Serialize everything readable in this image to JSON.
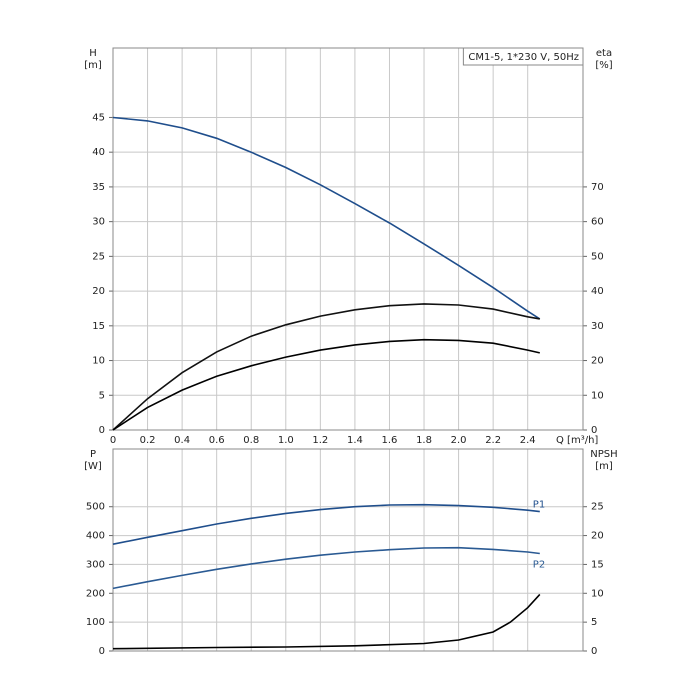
{
  "chart_data": [
    {
      "type": "line",
      "title": "CM1-5, 1*230 V, 50Hz",
      "xlabel": "Q [m³/h]",
      "ylabel": [
        "H",
        "[m]"
      ],
      "y2label": [
        "eta",
        "[%]"
      ],
      "xlim": [
        0,
        2.72
      ],
      "xticks": [
        0,
        0.2,
        0.4,
        0.6,
        0.8,
        {
          "value": 1,
          "label": "1.0"
        },
        1.2,
        1.4,
        1.6,
        1.8,
        {
          "value": 2,
          "label": "2.0"
        },
        2.2,
        2.4
      ],
      "ylim": [
        0,
        55
      ],
      "yticks": [
        0,
        5,
        10,
        15,
        20,
        25,
        30,
        35,
        40,
        45
      ],
      "y2lim": [
        0,
        110
      ],
      "y2ticks": [
        0,
        10,
        20,
        30,
        40,
        50,
        60,
        70
      ],
      "grid": true,
      "series": [
        {
          "color": "#1f4e8c",
          "x": [
            0,
            0.2,
            0.4,
            0.6,
            0.8,
            1.0,
            1.2,
            1.4,
            1.6,
            1.8,
            2.0,
            2.2,
            2.4,
            2.47
          ],
          "values": [
            45,
            44.5,
            43.5,
            42,
            40,
            37.8,
            35.3,
            32.6,
            29.8,
            26.8,
            23.7,
            20.5,
            17.1,
            16.0
          ]
        },
        {
          "color": "#111111",
          "axis": "y2",
          "x": [
            0,
            0.2,
            0.4,
            0.6,
            0.8,
            1.0,
            1.2,
            1.4,
            1.6,
            1.8,
            2.0,
            2.2,
            2.4,
            2.47
          ],
          "values": [
            0,
            9,
            16.5,
            22.5,
            27,
            30.3,
            32.8,
            34.6,
            35.8,
            36.3,
            36,
            34.8,
            32.6,
            32
          ]
        },
        {
          "color": "#000000",
          "axis": "y2",
          "x": [
            0,
            0.2,
            0.4,
            0.6,
            0.8,
            1.0,
            1.2,
            1.4,
            1.6,
            1.8,
            2.0,
            2.2,
            2.4,
            2.47
          ],
          "values": [
            0,
            6.5,
            11.5,
            15.5,
            18.5,
            21,
            23,
            24.5,
            25.5,
            26,
            25.8,
            25,
            23,
            22.2
          ]
        }
      ]
    },
    {
      "type": "line",
      "ylabel": [
        "P",
        "[W]"
      ],
      "y2label": [
        "NPSH",
        "[m]"
      ],
      "xlim": [
        0,
        2.72
      ],
      "ylim": [
        0,
        700
      ],
      "yticks": [
        0,
        100,
        200,
        300,
        400,
        500
      ],
      "y2lim": [
        0,
        35
      ],
      "y2ticks": [
        0,
        5,
        10,
        15,
        20,
        25
      ],
      "grid": true,
      "series": [
        {
          "name": "P1",
          "color": "#1f4e8c",
          "x": [
            0,
            0.2,
            0.4,
            0.6,
            0.8,
            1.0,
            1.2,
            1.4,
            1.6,
            1.8,
            2.0,
            2.2,
            2.4,
            2.47
          ],
          "values": [
            370,
            394,
            417,
            440,
            460,
            477,
            490,
            500,
            506,
            507,
            504,
            498,
            488,
            483
          ]
        },
        {
          "name": "P2",
          "color": "#2a5a93",
          "x": [
            0,
            0.2,
            0.4,
            0.6,
            0.8,
            1.0,
            1.2,
            1.4,
            1.6,
            1.8,
            2.0,
            2.2,
            2.4,
            2.47
          ],
          "values": [
            217,
            240,
            262,
            283,
            302,
            318,
            332,
            343,
            351,
            357,
            358,
            352,
            343,
            338
          ]
        },
        {
          "color": "#000000",
          "axis": "y2",
          "x": [
            0,
            0.6,
            1.0,
            1.4,
            1.8,
            2.0,
            2.2,
            2.3,
            2.4,
            2.47
          ],
          "values": [
            0.4,
            0.6,
            0.7,
            0.9,
            1.3,
            1.9,
            3.3,
            5,
            7.5,
            9.8
          ]
        }
      ]
    }
  ]
}
